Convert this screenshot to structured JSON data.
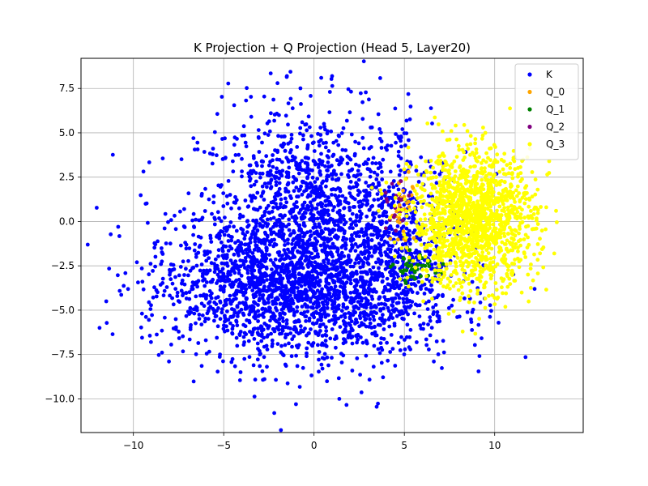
{
  "chart_data": {
    "type": "scatter",
    "title": "K Projection + Q Projection (Head 5, Layer20)",
    "xlabel": "",
    "ylabel": "",
    "xlim": [
      -12.9,
      14.9
    ],
    "ylim": [
      -11.9,
      9.2
    ],
    "xticks": [
      -10,
      -5,
      0,
      5,
      10
    ],
    "yticks": [
      -10.0,
      -7.5,
      -5.0,
      -2.5,
      0.0,
      2.5,
      5.0,
      7.5
    ],
    "xtick_labels": [
      "−10",
      "−5",
      "0",
      "5",
      "10"
    ],
    "ytick_labels": [
      "−10.0",
      "−7.5",
      "−5.0",
      "−2.5",
      "0.0",
      "2.5",
      "5.0",
      "7.5"
    ],
    "grid": true,
    "legend_position": "top-right",
    "series": [
      {
        "name": "K",
        "color": "#0000ff",
        "clusters": [
          {
            "center": [
              0,
              0.3
            ],
            "spread": [
              3.2,
              3.0
            ],
            "count": 1400
          },
          {
            "center": [
              -3.5,
              -3.6
            ],
            "spread": [
              3.0,
              1.8
            ],
            "count": 900
          },
          {
            "center": [
              1.5,
              -4.2
            ],
            "spread": [
              3.2,
              2.0
            ],
            "count": 900
          },
          {
            "center": [
              4.5,
              -1.8
            ],
            "spread": [
              1.8,
              2.2
            ],
            "count": 300
          }
        ],
        "points": [
          [
            -2.4,
            8.35
          ],
          [
            0.4,
            8.1
          ],
          [
            1.0,
            8.2
          ],
          [
            -1.5,
            8.2
          ],
          [
            -2.2,
            -10.8
          ],
          [
            -11.5,
            -4.5
          ],
          [
            -1.0,
            -10.3
          ],
          [
            1.4,
            -10.0
          ]
        ]
      },
      {
        "name": "Q_0",
        "color": "#ffa500",
        "clusters": [
          {
            "center": [
              5.0,
              0.8
            ],
            "spread": [
              0.4,
              1.0
            ],
            "count": 30
          }
        ],
        "points": []
      },
      {
        "name": "Q_1",
        "color": "#008000",
        "clusters": [
          {
            "center": [
              5.6,
              -2.6
            ],
            "spread": [
              0.6,
              0.4
            ],
            "count": 40
          }
        ],
        "points": []
      },
      {
        "name": "Q_2",
        "color": "#800080",
        "clusters": [
          {
            "center": [
              4.6,
              0.5
            ],
            "spread": [
              0.3,
              0.8
            ],
            "count": 20
          }
        ],
        "points": []
      },
      {
        "name": "Q_3",
        "color": "#ffff00",
        "clusters": [
          {
            "center": [
              8.8,
              0.1
            ],
            "spread": [
              1.7,
              1.9
            ],
            "count": 1500
          }
        ],
        "points": [
          [
            13.4,
            0.6
          ],
          [
            13.3,
            -1.8
          ],
          [
            4.0,
            2.2
          ],
          [
            7.6,
            5.1
          ],
          [
            3.2,
            1.9
          ]
        ]
      }
    ]
  }
}
